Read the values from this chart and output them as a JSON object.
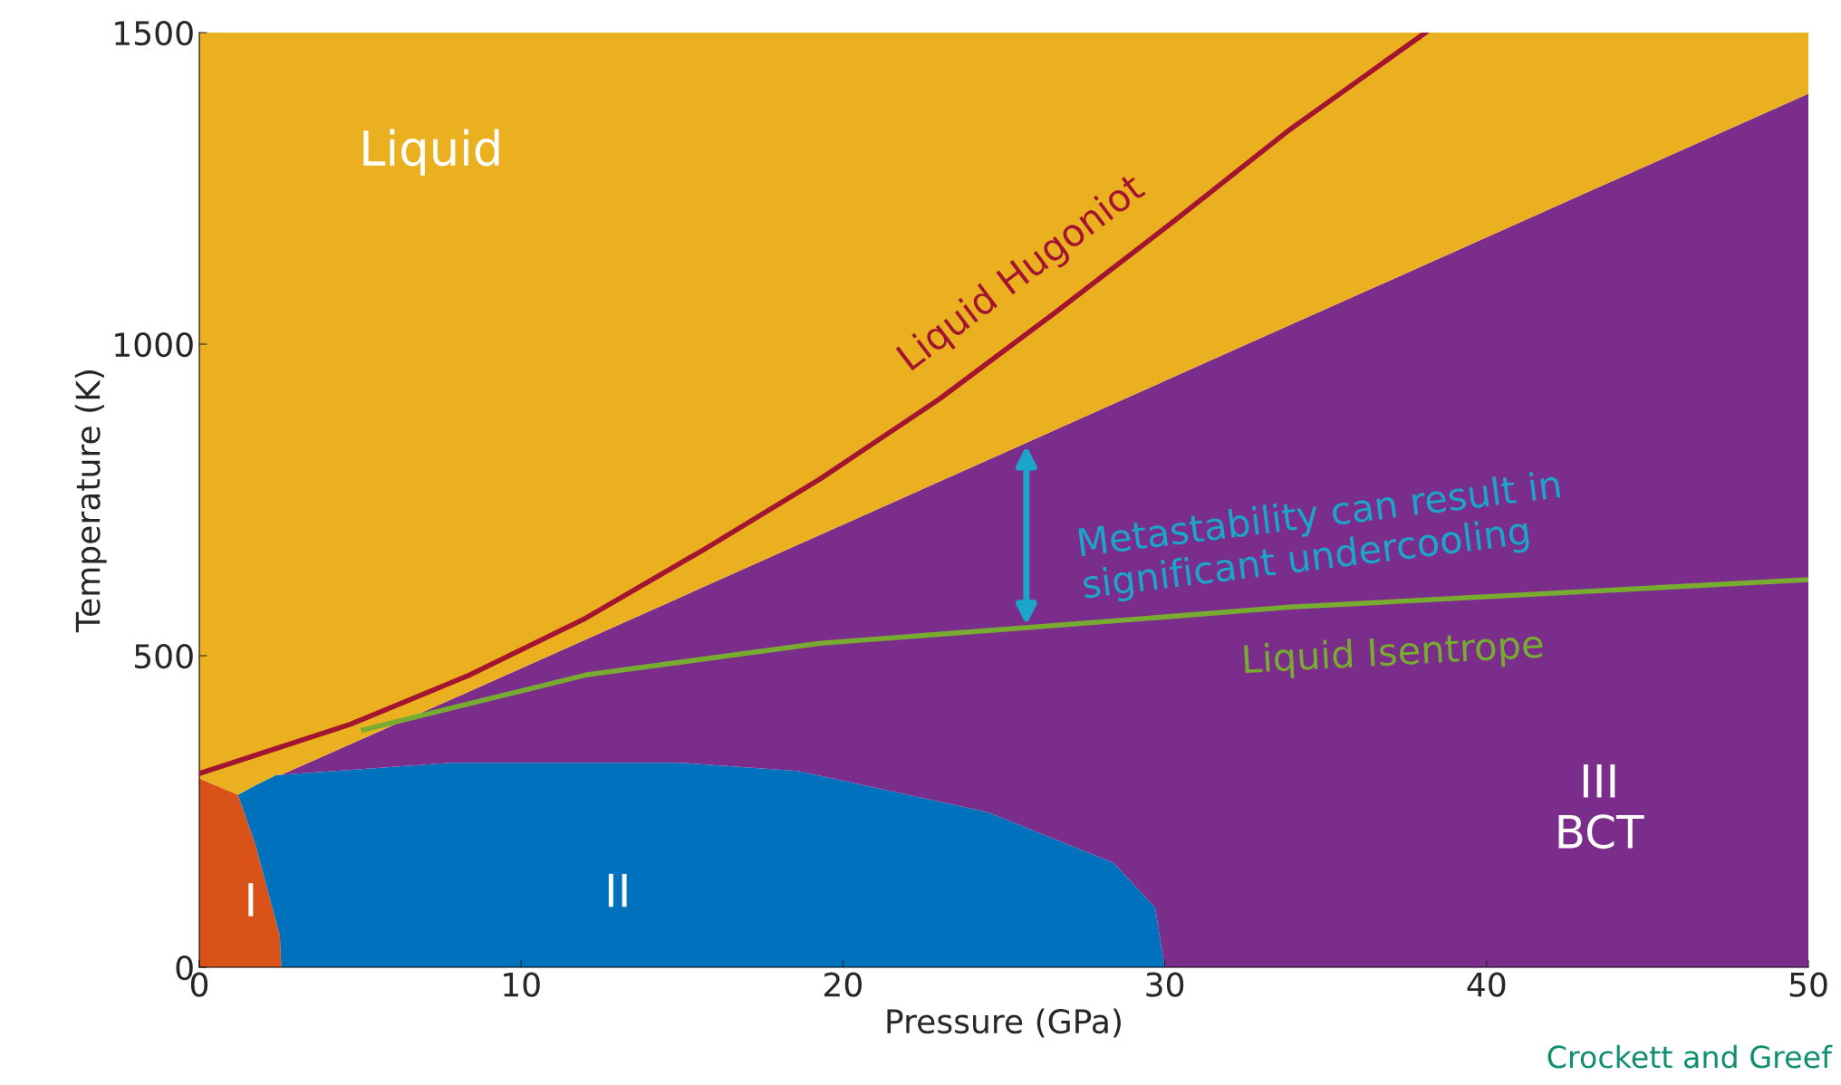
{
  "chart_data": {
    "type": "area",
    "stacked": true,
    "xlabel": "Pressure (GPa)",
    "ylabel": "Temperature (K)",
    "xlim": [
      0,
      50
    ],
    "xticks": [
      0,
      10,
      20,
      30,
      40,
      50
    ],
    "ylim": [
      0,
      1500
    ],
    "yticks": [
      0,
      500,
      1000,
      1500
    ],
    "x": [
      0,
      1.2,
      1.75,
      2.4,
      2.5,
      2.55,
      7.8,
      15,
      18.6,
      24.5,
      28.4,
      29.7,
      30,
      50
    ],
    "series": [
      {
        "color": "#d95319",
        "values": [
          303,
          277,
          196,
          70,
          51,
          0,
          0,
          0,
          0,
          0,
          0,
          0,
          0,
          0
        ]
      },
      {
        "color": "#0072bd",
        "values": [
          0,
          0,
          96,
          239,
          258,
          309,
          328,
          328,
          315,
          249,
          168,
          96,
          0,
          0
        ]
      },
      {
        "color": "#7b2d8b",
        "values": [
          0,
          0,
          0,
          0,
          0,
          0,
          101,
          267,
          363,
          565,
          736,
          838,
          941,
          1402
        ]
      },
      {
        "color": "#ebb020",
        "values": [
          1197,
          1223,
          1208,
          1191,
          1191,
          1191,
          1071,
          905,
          822,
          686,
          596,
          566,
          559,
          98
        ]
      },
      {
        "name": "Liquid Hugoniot",
        "type": "line",
        "color": "#a2142f",
        "x": [
          0,
          4.7,
          8.4,
          12,
          15.7,
          19.3,
          23,
          26.6,
          30.3,
          33.9,
          38.1
        ],
        "values": [
          311,
          390,
          469,
          560,
          671,
          784,
          912,
          1051,
          1198,
          1345,
          1500
        ]
      },
      {
        "name": "Liquid Isentrope",
        "type": "line",
        "color": "#77ac30",
        "x": [
          5.1,
          12,
          19.3,
          25.7,
          33.9,
          50
        ],
        "values": [
          381,
          469,
          520,
          545,
          578,
          622
        ]
      }
    ],
    "annotations": [
      "I",
      "II",
      "III\nBCT",
      "Liquid",
      "Metastability can result in\nsignificant undercooling",
      "Crockett and Greef"
    ]
  }
}
